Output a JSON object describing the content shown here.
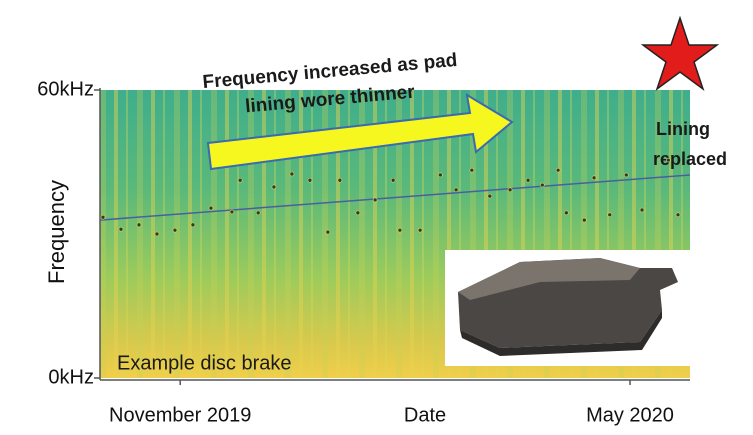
{
  "chart_data": {
    "type": "scatter",
    "y_axis_label": "Frequency",
    "x_axis_label": "Date",
    "ylim": [
      0,
      60
    ],
    "yticks": [
      {
        "value": 0,
        "label": "0kHz"
      },
      {
        "value": 60,
        "label": "60kHz"
      }
    ],
    "xlim": [
      -0.07,
      7.8
    ],
    "xticks": [
      {
        "value": 1,
        "label": "November 2019"
      },
      {
        "value": 7,
        "label": "May 2020"
      }
    ],
    "x": [
      -0.03,
      0.21,
      0.45,
      0.69,
      0.93,
      1.17,
      1.41,
      1.69,
      1.8,
      2.04,
      2.25,
      2.49,
      2.73,
      2.97,
      3.13,
      3.37,
      3.6,
      3.84,
      3.93,
      4.2,
      4.47,
      4.68,
      4.89,
      5.13,
      5.4,
      5.64,
      5.83,
      6.04,
      6.15,
      6.39,
      6.52,
      6.73,
      6.95,
      7.16,
      7.51,
      7.64
    ],
    "values": [
      33.5,
      31.0,
      31.9,
      30.0,
      30.8,
      31.9,
      35.4,
      34.6,
      41.2,
      34.4,
      39.8,
      42.5,
      41.2,
      30.4,
      41.2,
      34.4,
      37.1,
      41.2,
      30.8,
      30.8,
      42.3,
      39.2,
      43.3,
      37.9,
      39.2,
      41.2,
      40.2,
      43.3,
      34.4,
      32.9,
      41.7,
      34.0,
      42.3,
      35.0,
      45.4,
      34.0
    ],
    "color": "#2e3a2a",
    "trend_line": {
      "x": [
        -0.07,
        7.8
      ],
      "values": [
        32.9,
        42.3
      ],
      "color": "#4a5fa0"
    },
    "arrow_text": [
      "Frequency increased as pad",
      "lining wore thinner"
    ],
    "lining_text": [
      "Lining",
      "replaced"
    ],
    "inset_label": "Example disc brake"
  }
}
